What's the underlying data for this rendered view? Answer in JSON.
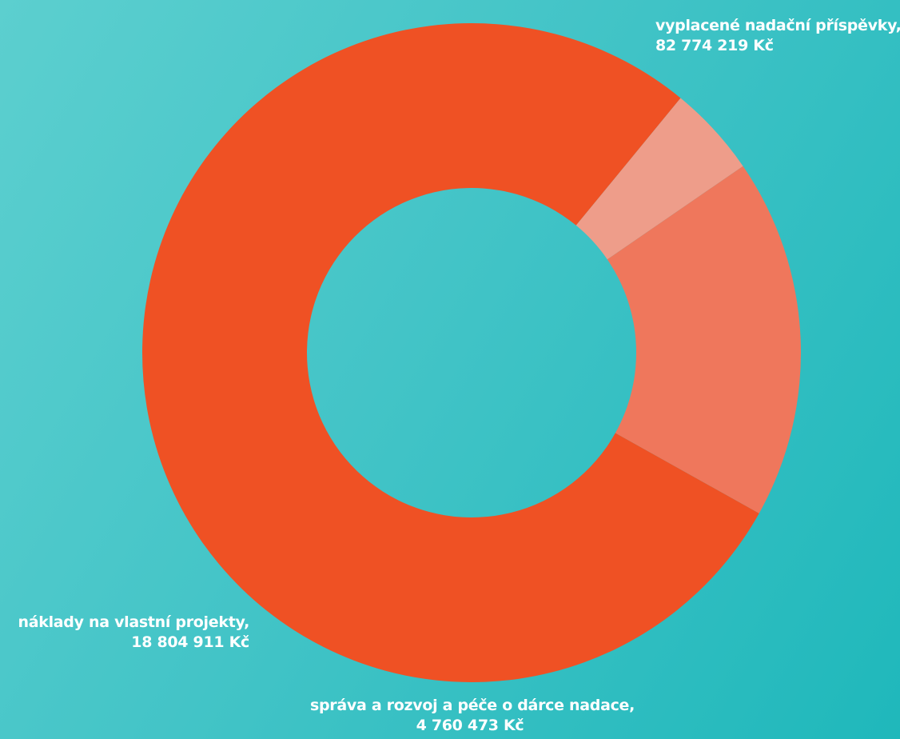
{
  "chart_data": {
    "type": "pie",
    "donut": true,
    "title": "",
    "series": [
      {
        "name": "vyplacené nadační příspěvky,",
        "value_label": "82 774 219 Kč",
        "value": 82774219,
        "color": "#ef5124"
      },
      {
        "name": "správa a rozvoj a péče o dárce nadace,",
        "value_label": "4 760 473 Kč",
        "value": 4760473,
        "color": "#ee9d8a"
      },
      {
        "name": "náklady na vlastní projekty,",
        "value_label": "18 804 911 Kč",
        "value": 18804911,
        "color": "#ef775c"
      }
    ],
    "legend": "none"
  },
  "colors": {
    "background_start": "#5ccfcf",
    "background_end": "#1fb8bb",
    "label_text": "#ffffff"
  }
}
